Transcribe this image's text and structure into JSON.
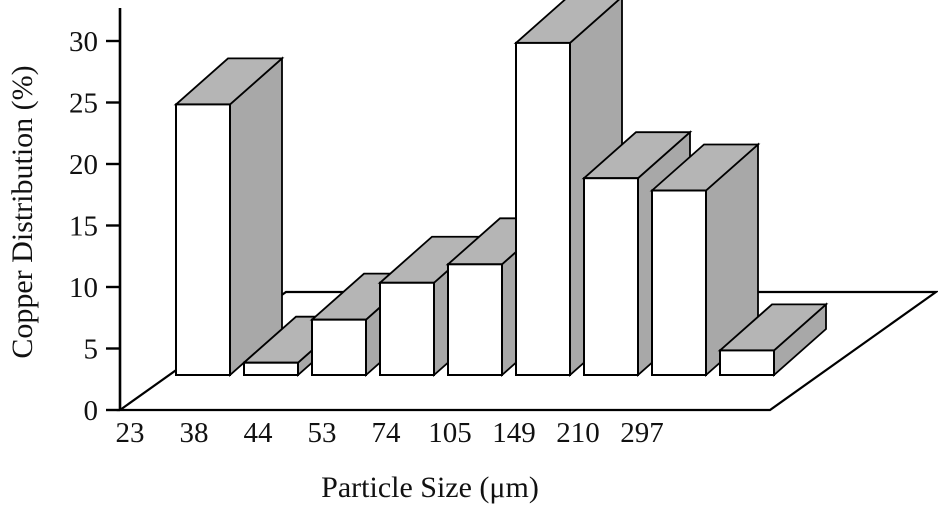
{
  "chart_data": {
    "type": "bar",
    "subtype": "3d-column",
    "title": "",
    "xlabel": "Particle Size (μm)",
    "ylabel": "Copper Distribution (%)",
    "categories": [
      "23",
      "38",
      "44",
      "53",
      "74",
      "105",
      "149",
      "210",
      "297"
    ],
    "values": [
      22,
      1,
      4.5,
      7.5,
      9,
      27,
      16,
      15,
      2
    ],
    "ylim": [
      0,
      30
    ],
    "yticks": [
      0,
      5,
      10,
      15,
      20,
      25,
      30
    ],
    "grid": false,
    "legend": false,
    "colors": {
      "background": "#ffffff",
      "bar_front": "#ffffff",
      "bar_top": "#b5b5b5",
      "bar_side": "#a8a8a8",
      "outline": "#000000",
      "text": "#111111"
    }
  }
}
